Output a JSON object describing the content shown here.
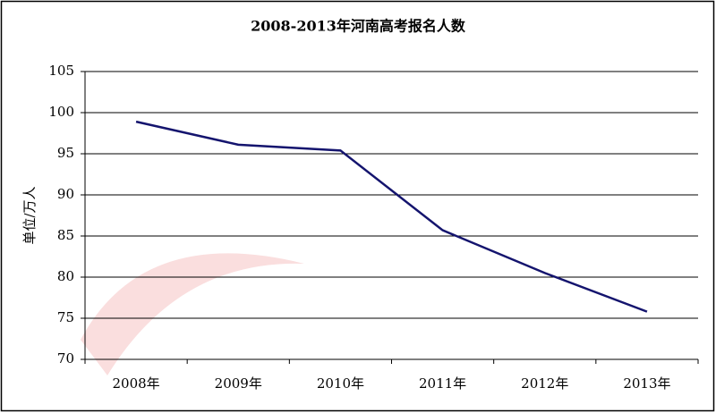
{
  "chart_data": {
    "type": "line",
    "title": "2008-2013年河南高考报名人数",
    "y_label": "单位/万人",
    "categories": [
      "2008年",
      "2009年",
      "2010年",
      "2011年",
      "2012年",
      "2013年"
    ],
    "series": [
      {
        "name": "报名人数",
        "color": "#14146e",
        "values": [
          98.9,
          96.1,
          95.4,
          85.7,
          80.5,
          75.8
        ]
      }
    ],
    "ylim": [
      70,
      105
    ],
    "yticks": [
      70,
      75,
      80,
      85,
      90,
      95,
      100,
      105
    ],
    "grid": true,
    "legend": false
  }
}
